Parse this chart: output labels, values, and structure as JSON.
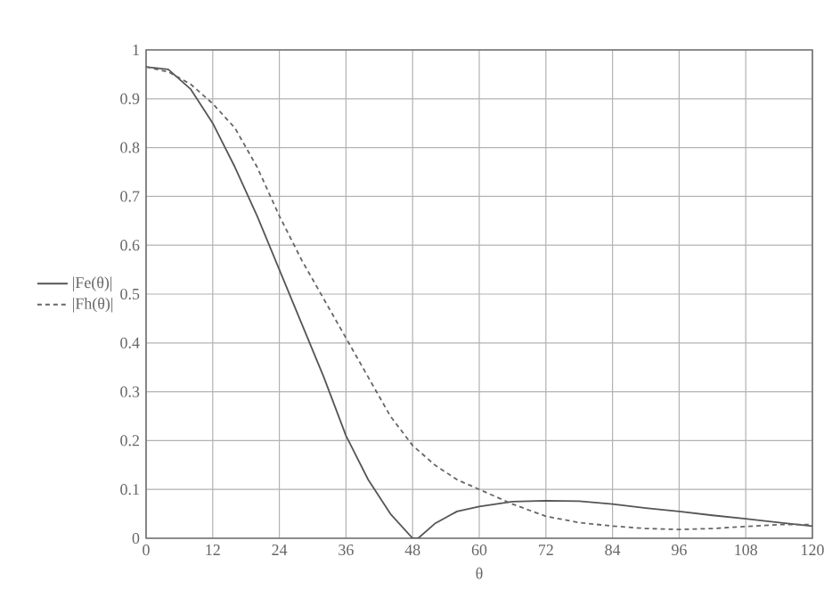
{
  "chart_data": {
    "type": "line",
    "xlabel": "θ",
    "xlim": [
      0,
      120
    ],
    "xticks": [
      0,
      12,
      24,
      36,
      48,
      60,
      72,
      84,
      96,
      108,
      120
    ],
    "ylim": [
      0,
      1
    ],
    "yticks": [
      0,
      0.1,
      0.2,
      0.3,
      0.4,
      0.5,
      0.6,
      0.7,
      0.8,
      0.9,
      1
    ],
    "grid": true,
    "legend": "left",
    "marker": "none",
    "x": [
      0,
      4,
      8,
      12,
      16,
      20,
      24,
      28,
      32,
      36,
      40,
      44,
      48,
      49,
      52,
      56,
      60,
      66,
      72,
      78,
      84,
      90,
      96,
      102,
      108,
      114,
      120
    ],
    "series": [
      {
        "name": "|Fe(θ)|",
        "color": "#555555",
        "line_style": "solid",
        "values": [
          0.965,
          0.96,
          0.92,
          0.85,
          0.76,
          0.66,
          0.55,
          0.44,
          0.33,
          0.21,
          0.12,
          0.05,
          0.0,
          0.0,
          0.03,
          0.055,
          0.065,
          0.075,
          0.077,
          0.076,
          0.07,
          0.062,
          0.055,
          0.047,
          0.04,
          0.032,
          0.025
        ]
      },
      {
        "name": "|Fh(θ)|",
        "color": "#666666",
        "line_style": "dashed",
        "values": [
          0.965,
          0.955,
          0.93,
          0.89,
          0.84,
          0.76,
          0.66,
          0.57,
          0.49,
          0.41,
          0.33,
          0.25,
          0.19,
          0.18,
          0.15,
          0.12,
          0.1,
          0.07,
          0.045,
          0.032,
          0.025,
          0.02,
          0.018,
          0.02,
          0.024,
          0.028,
          0.028
        ]
      }
    ]
  }
}
